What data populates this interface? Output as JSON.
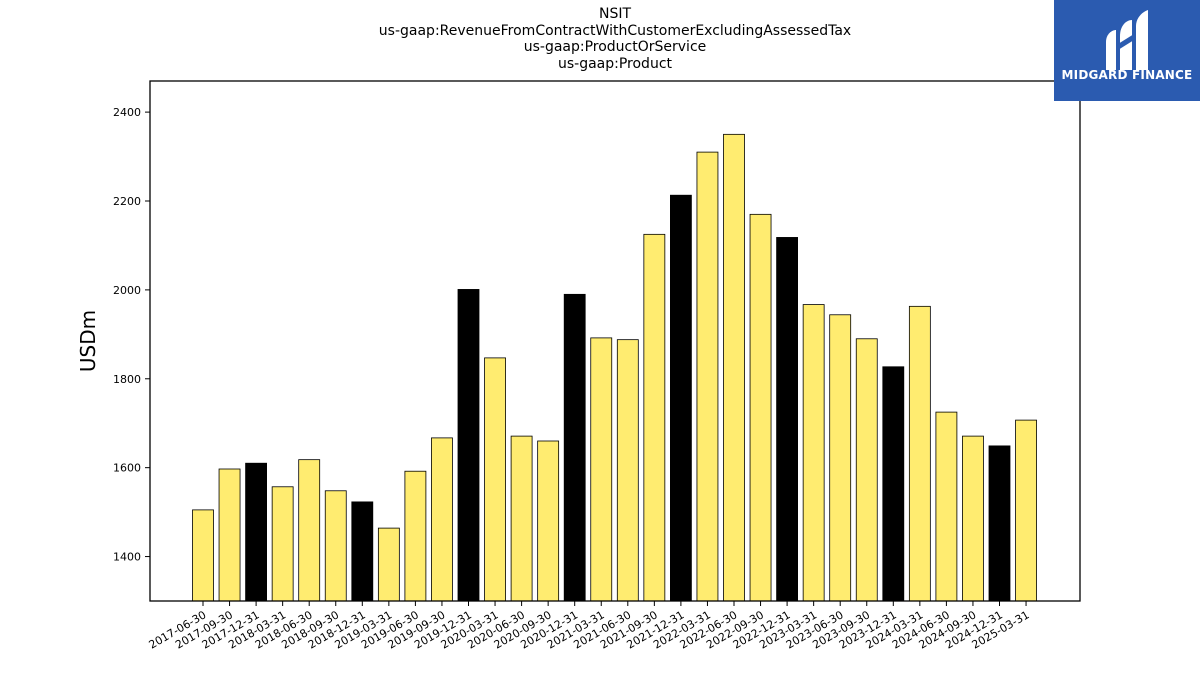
{
  "logo": {
    "text": "MIDGARD FINANCE",
    "background": "#2b5bb0"
  },
  "chart_data": {
    "type": "bar",
    "title_lines": [
      "NSIT",
      "us-gaap:RevenueFromContractWithCustomerExcludingAssessedTax",
      "us-gaap:ProductOrService",
      "us-gaap:Product"
    ],
    "xlabel": "",
    "ylabel": "USDm",
    "ylim": [
      1300,
      2470
    ],
    "yticks": [
      1400,
      1600,
      1800,
      2000,
      2200,
      2400
    ],
    "grid": false,
    "colors": {
      "quarter": "#ffec70",
      "year_end": "#000000",
      "edge": "#000000"
    },
    "categories": [
      "2017-06-30",
      "2017-09-30",
      "2017-12-31",
      "2018-03-31",
      "2018-06-30",
      "2018-09-30",
      "2018-12-31",
      "2019-03-31",
      "2019-06-30",
      "2019-09-30",
      "2019-12-31",
      "2020-03-31",
      "2020-06-30",
      "2020-09-30",
      "2020-12-31",
      "2021-03-31",
      "2021-06-30",
      "2021-09-30",
      "2021-12-31",
      "2022-03-31",
      "2022-06-30",
      "2022-09-30",
      "2022-12-31",
      "2023-03-31",
      "2023-06-30",
      "2023-09-30",
      "2023-12-31",
      "2024-03-31",
      "2024-06-30",
      "2024-09-30",
      "2024-12-31",
      "2025-03-31"
    ],
    "values": [
      1505,
      1597,
      1610,
      1557,
      1618,
      1548,
      1523,
      1464,
      1592,
      1667,
      2001,
      1847,
      1671,
      1660,
      1990,
      1892,
      1888,
      2125,
      2213,
      2310,
      2350,
      2170,
      2118,
      1967,
      1944,
      1890,
      1827,
      1963,
      1725,
      1671,
      1649,
      1707
    ],
    "year_end": [
      false,
      false,
      true,
      false,
      false,
      false,
      true,
      false,
      false,
      false,
      true,
      false,
      false,
      false,
      true,
      false,
      false,
      false,
      true,
      false,
      false,
      false,
      true,
      false,
      false,
      false,
      true,
      false,
      false,
      false,
      true,
      false
    ]
  }
}
